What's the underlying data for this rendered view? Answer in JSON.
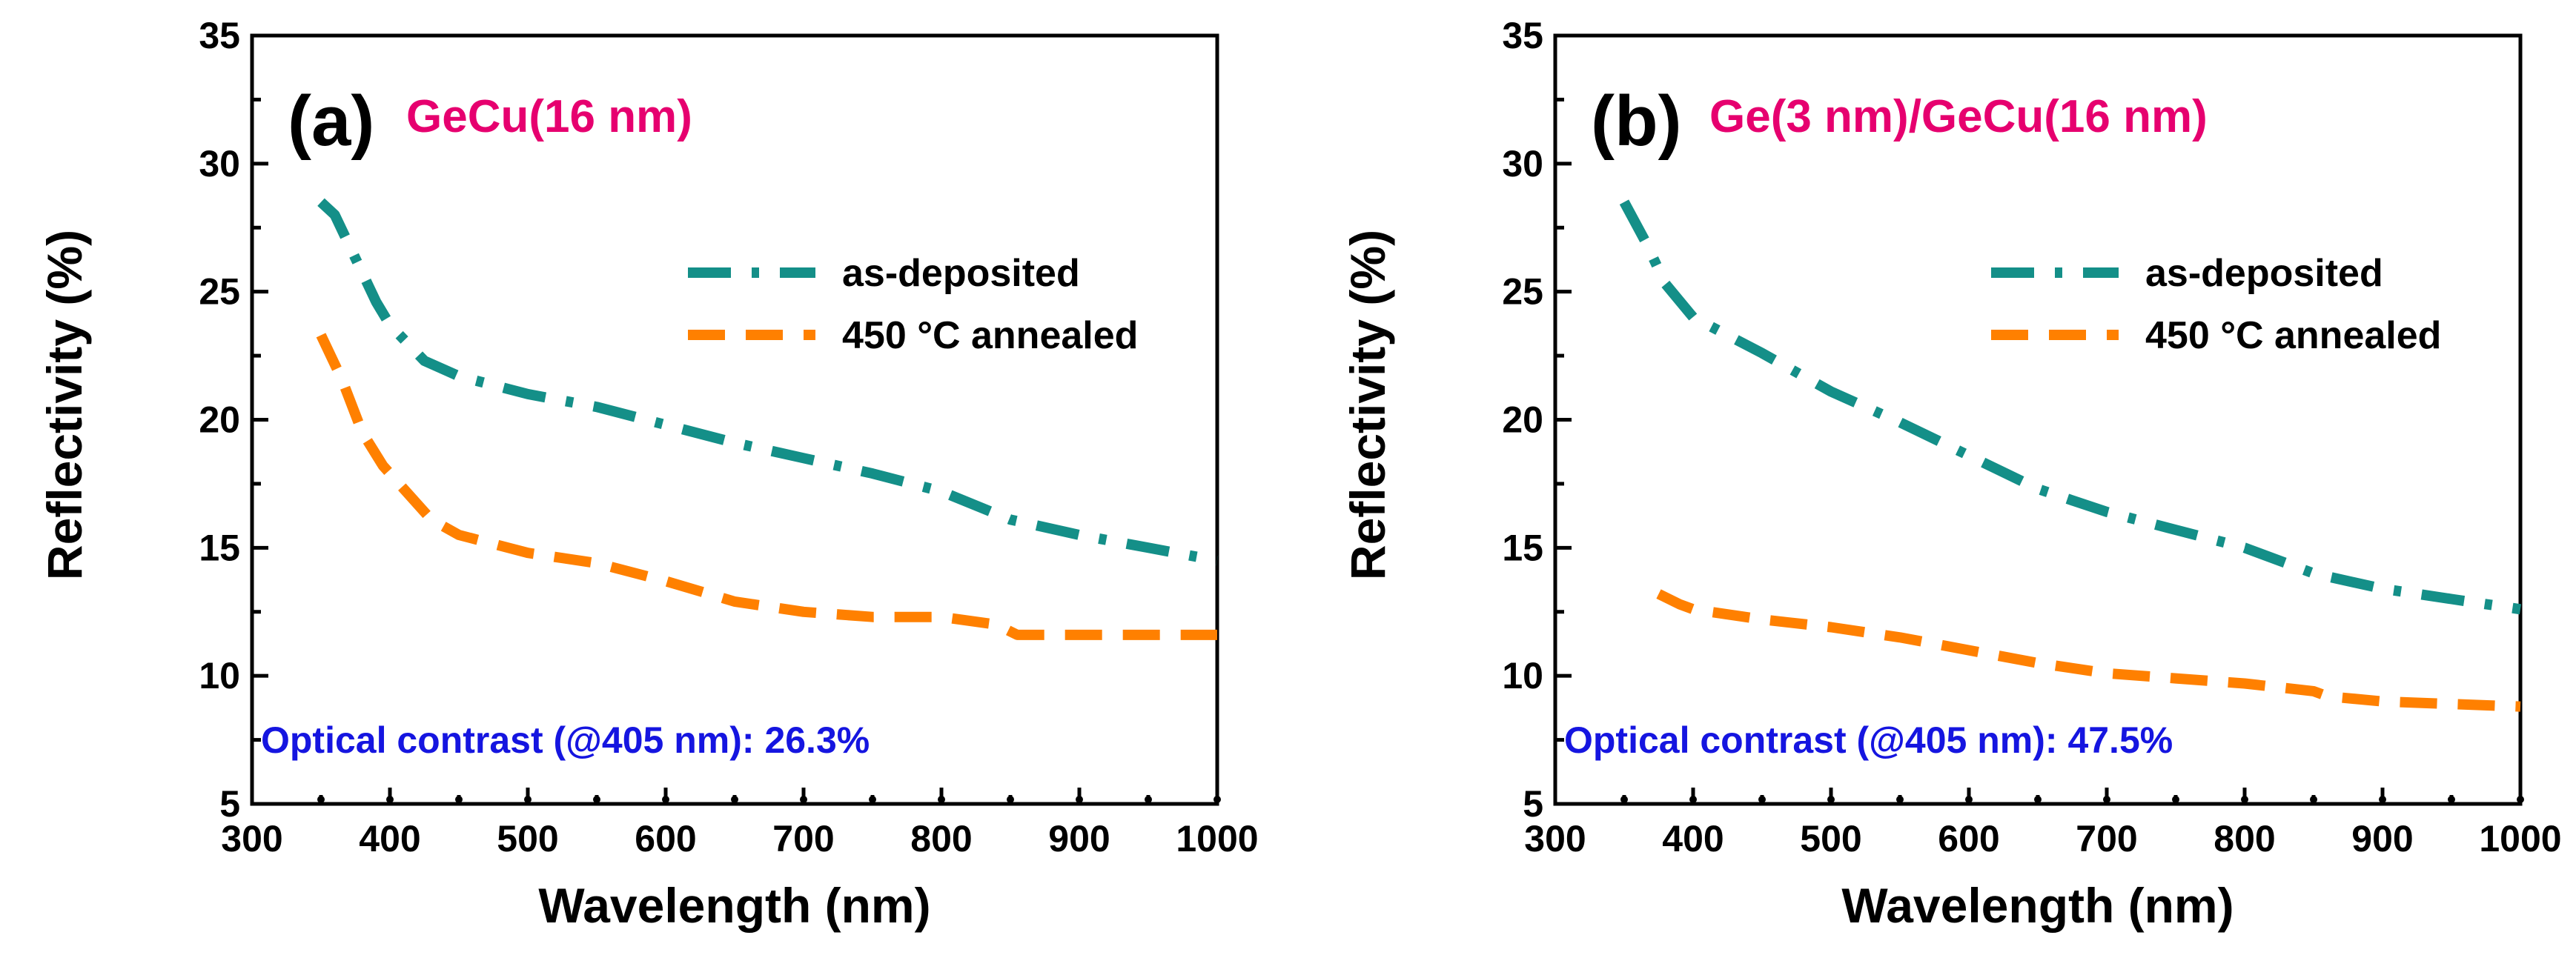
{
  "chart_data": [
    {
      "type": "line",
      "panel_label": "(a)",
      "sample": "GeCu(16 nm)",
      "xlabel": "Wavelength (nm)",
      "ylabel": "Reflectivity (%)",
      "xlim": [
        300,
        1000
      ],
      "ylim": [
        5,
        35
      ],
      "x_ticks": [
        "300",
        "400",
        "500",
        "600",
        "700",
        "800",
        "900",
        "1000"
      ],
      "y_ticks": [
        "5",
        "10",
        "15",
        "20",
        "25",
        "30",
        "35"
      ],
      "legend": {
        "placement": "right",
        "labels": [
          "as-deposited",
          "450 °C annealed"
        ]
      },
      "annotation": "Optical contrast (@405 nm): 26.3%",
      "series": [
        {
          "name": "as-deposited",
          "style": "dash-dot",
          "color": "#148f88",
          "x": [
            350,
            360,
            375,
            390,
            400,
            425,
            450,
            500,
            550,
            600,
            650,
            700,
            750,
            800,
            850,
            900,
            950,
            1000
          ],
          "y": [
            28.5,
            28.0,
            26.3,
            24.6,
            23.7,
            22.3,
            21.7,
            21.0,
            20.5,
            19.8,
            19.1,
            18.5,
            17.9,
            17.2,
            16.1,
            15.5,
            15.0,
            14.5
          ]
        },
        {
          "name": "450 °C annealed",
          "style": "dash",
          "color": "#ff8000",
          "x": [
            350,
            365,
            380,
            395,
            410,
            430,
            450,
            500,
            550,
            600,
            650,
            700,
            750,
            800,
            840,
            855,
            900,
            1000
          ],
          "y": [
            23.3,
            21.6,
            19.5,
            18.2,
            17.3,
            16.1,
            15.5,
            14.8,
            14.4,
            13.7,
            12.9,
            12.5,
            12.3,
            12.3,
            12.0,
            11.6,
            11.6,
            11.6
          ]
        }
      ]
    },
    {
      "type": "line",
      "panel_label": "(b)",
      "sample": "Ge(3 nm)/GeCu(16 nm)",
      "xlabel": "Wavelength (nm)",
      "ylabel": "Reflectivity (%)",
      "xlim": [
        300,
        1000
      ],
      "ylim": [
        5,
        35
      ],
      "x_ticks": [
        "300",
        "400",
        "500",
        "600",
        "700",
        "800",
        "900",
        "1000"
      ],
      "y_ticks": [
        "5",
        "10",
        "15",
        "20",
        "25",
        "30",
        "35"
      ],
      "legend": {
        "placement": "right",
        "labels": [
          "as-deposited",
          "450 °C annealed"
        ]
      },
      "annotation": "Optical contrast (@405 nm): 47.5%",
      "series": [
        {
          "name": "as-deposited",
          "style": "dash-dot",
          "color": "#148f88",
          "x": [
            350,
            365,
            380,
            400,
            450,
            500,
            550,
            600,
            650,
            700,
            750,
            800,
            850,
            900,
            950,
            1000
          ],
          "y": [
            28.5,
            27.0,
            25.3,
            24.0,
            22.6,
            21.1,
            19.9,
            18.6,
            17.3,
            16.4,
            15.7,
            15.0,
            14.0,
            13.4,
            13.0,
            12.6
          ]
        },
        {
          "name": "450 °C annealed",
          "style": "dash",
          "color": "#ff8000",
          "x": [
            375,
            390,
            400,
            450,
            500,
            550,
            600,
            650,
            700,
            750,
            800,
            850,
            860,
            900,
            950,
            1000
          ],
          "y": [
            13.2,
            12.8,
            12.6,
            12.2,
            11.9,
            11.5,
            11.0,
            10.5,
            10.1,
            9.9,
            9.7,
            9.4,
            9.2,
            9.0,
            8.9,
            8.8
          ]
        }
      ]
    }
  ],
  "colors": {
    "as_deposited": "#148f88",
    "annealed": "#ff8000",
    "sample_label": "#e6006f",
    "annotation": "#1515e0",
    "axis": "#000000"
  }
}
